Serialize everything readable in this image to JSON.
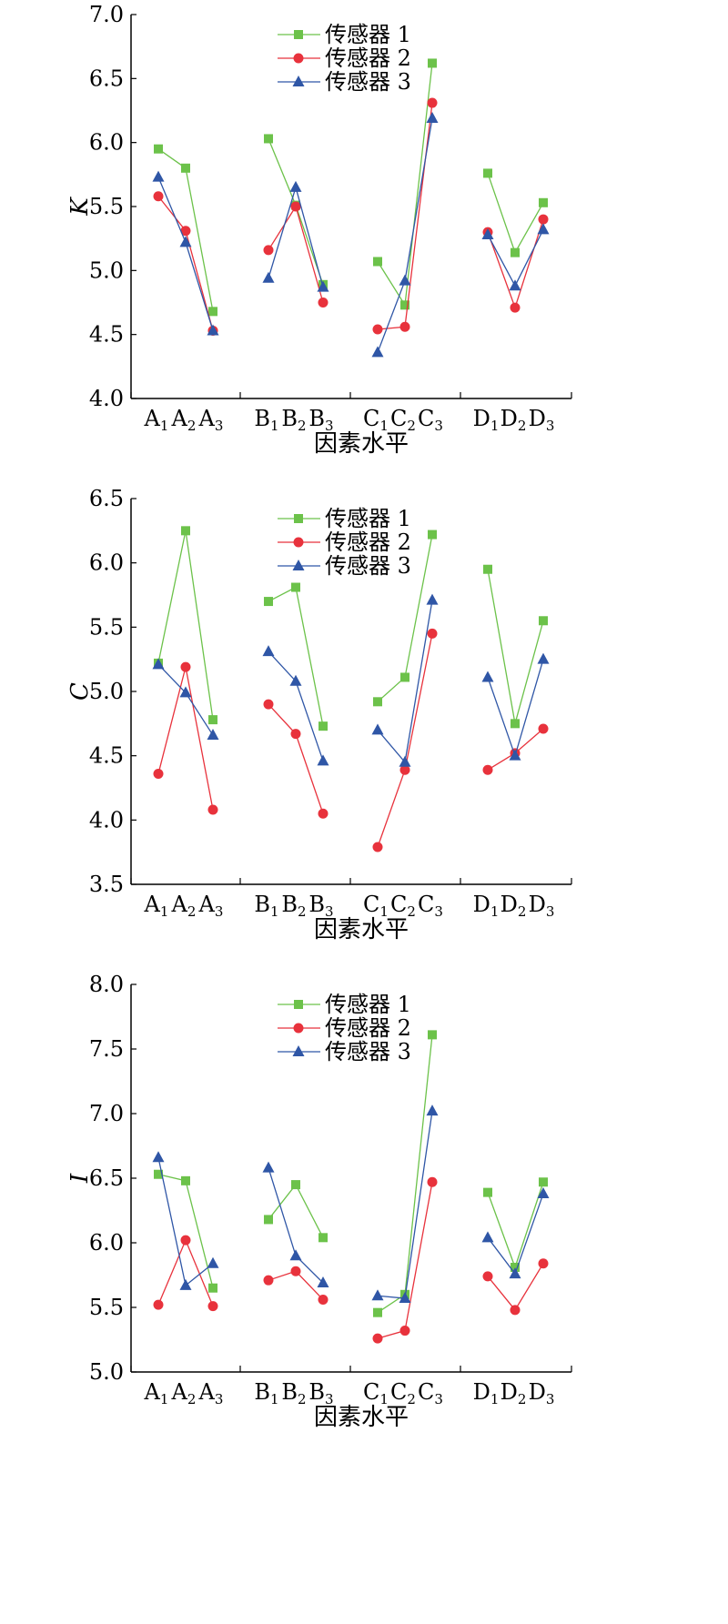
{
  "colors": {
    "series_1": "#6cc24a",
    "series_2": "#e8323c",
    "series_3": "#2f56a6",
    "axis": "#000000"
  },
  "chart_data": [
    {
      "type": "line",
      "ylabel": "K",
      "xlabel": "因素水平",
      "ylim": [
        4.0,
        7.0
      ],
      "yticks": [
        "4.0",
        "4.5",
        "5.0",
        "5.5",
        "6.0",
        "6.5",
        "7.0"
      ],
      "groups": [
        {
          "name": "A",
          "levels": [
            "1",
            "2",
            "3"
          ]
        },
        {
          "name": "B",
          "levels": [
            "1",
            "2",
            "3"
          ]
        },
        {
          "name": "C",
          "levels": [
            "1",
            "2",
            "3"
          ]
        },
        {
          "name": "D",
          "levels": [
            "1",
            "2",
            "3"
          ]
        }
      ],
      "legend_position": "top-center",
      "series": [
        {
          "name": "传感器 1",
          "marker": "square",
          "values": [
            [
              5.95,
              5.8,
              4.68
            ],
            [
              6.03,
              5.51,
              4.89
            ],
            [
              5.07,
              4.73,
              6.62
            ],
            [
              5.76,
              5.14,
              5.53
            ]
          ]
        },
        {
          "name": "传感器 2",
          "marker": "circle",
          "values": [
            [
              5.58,
              5.31,
              4.53
            ],
            [
              5.16,
              5.5,
              4.75
            ],
            [
              4.54,
              4.56,
              6.31
            ],
            [
              5.3,
              4.71,
              5.4
            ]
          ]
        },
        {
          "name": "传感器 3",
          "marker": "triangle",
          "values": [
            [
              5.73,
              5.22,
              4.53
            ],
            [
              4.94,
              5.65,
              4.87
            ],
            [
              4.36,
              4.92,
              6.19
            ],
            [
              5.28,
              4.88,
              5.32
            ]
          ]
        }
      ]
    },
    {
      "type": "line",
      "ylabel": "C",
      "xlabel": "因素水平",
      "ylim": [
        3.5,
        6.5
      ],
      "yticks": [
        "3.5",
        "4.0",
        "4.5",
        "5.0",
        "5.5",
        "6.0",
        "6.5"
      ],
      "groups": [
        {
          "name": "A",
          "levels": [
            "1",
            "2",
            "3"
          ]
        },
        {
          "name": "B",
          "levels": [
            "1",
            "2",
            "3"
          ]
        },
        {
          "name": "C",
          "levels": [
            "1",
            "2",
            "3"
          ]
        },
        {
          "name": "D",
          "levels": [
            "1",
            "2",
            "3"
          ]
        }
      ],
      "legend_position": "top-center",
      "series": [
        {
          "name": "传感器 1",
          "marker": "square",
          "values": [
            [
              5.22,
              6.25,
              4.78
            ],
            [
              5.7,
              5.81,
              4.73
            ],
            [
              4.92,
              5.11,
              6.22
            ],
            [
              5.95,
              4.75,
              5.55
            ]
          ]
        },
        {
          "name": "传感器 2",
          "marker": "circle",
          "values": [
            [
              4.36,
              5.19,
              4.08
            ],
            [
              4.9,
              4.67,
              4.05
            ],
            [
              3.79,
              4.39,
              5.45
            ],
            [
              4.39,
              4.52,
              4.71
            ]
          ]
        },
        {
          "name": "传感器 3",
          "marker": "triangle",
          "values": [
            [
              5.21,
              4.99,
              4.66
            ],
            [
              5.31,
              5.08,
              4.46
            ],
            [
              4.7,
              4.45,
              5.71
            ],
            [
              5.11,
              4.5,
              5.25
            ]
          ]
        }
      ]
    },
    {
      "type": "line",
      "ylabel": "I",
      "xlabel": "因素水平",
      "ylim": [
        5.0,
        8.0
      ],
      "yticks": [
        "5.0",
        "5.5",
        "6.0",
        "6.5",
        "7.0",
        "7.5",
        "8.0"
      ],
      "groups": [
        {
          "name": "A",
          "levels": [
            "1",
            "2",
            "3"
          ]
        },
        {
          "name": "B",
          "levels": [
            "1",
            "2",
            "3"
          ]
        },
        {
          "name": "C",
          "levels": [
            "1",
            "2",
            "3"
          ]
        },
        {
          "name": "D",
          "levels": [
            "1",
            "2",
            "3"
          ]
        }
      ],
      "legend_position": "top-center",
      "series": [
        {
          "name": "传感器 1",
          "marker": "square",
          "values": [
            [
              6.53,
              6.48,
              5.65
            ],
            [
              6.18,
              6.45,
              6.04
            ],
            [
              5.46,
              5.6,
              7.61
            ],
            [
              6.39,
              5.81,
              6.47
            ]
          ]
        },
        {
          "name": "传感器 2",
          "marker": "circle",
          "values": [
            [
              5.52,
              6.02,
              5.51
            ],
            [
              5.71,
              5.78,
              5.56
            ],
            [
              5.26,
              5.32,
              6.47
            ],
            [
              5.74,
              5.48,
              5.84
            ]
          ]
        },
        {
          "name": "传感器 3",
          "marker": "triangle",
          "values": [
            [
              6.66,
              5.67,
              5.84
            ],
            [
              6.58,
              5.9,
              5.69
            ],
            [
              5.59,
              5.57,
              7.02
            ],
            [
              6.04,
              5.76,
              6.38
            ]
          ]
        }
      ]
    }
  ]
}
